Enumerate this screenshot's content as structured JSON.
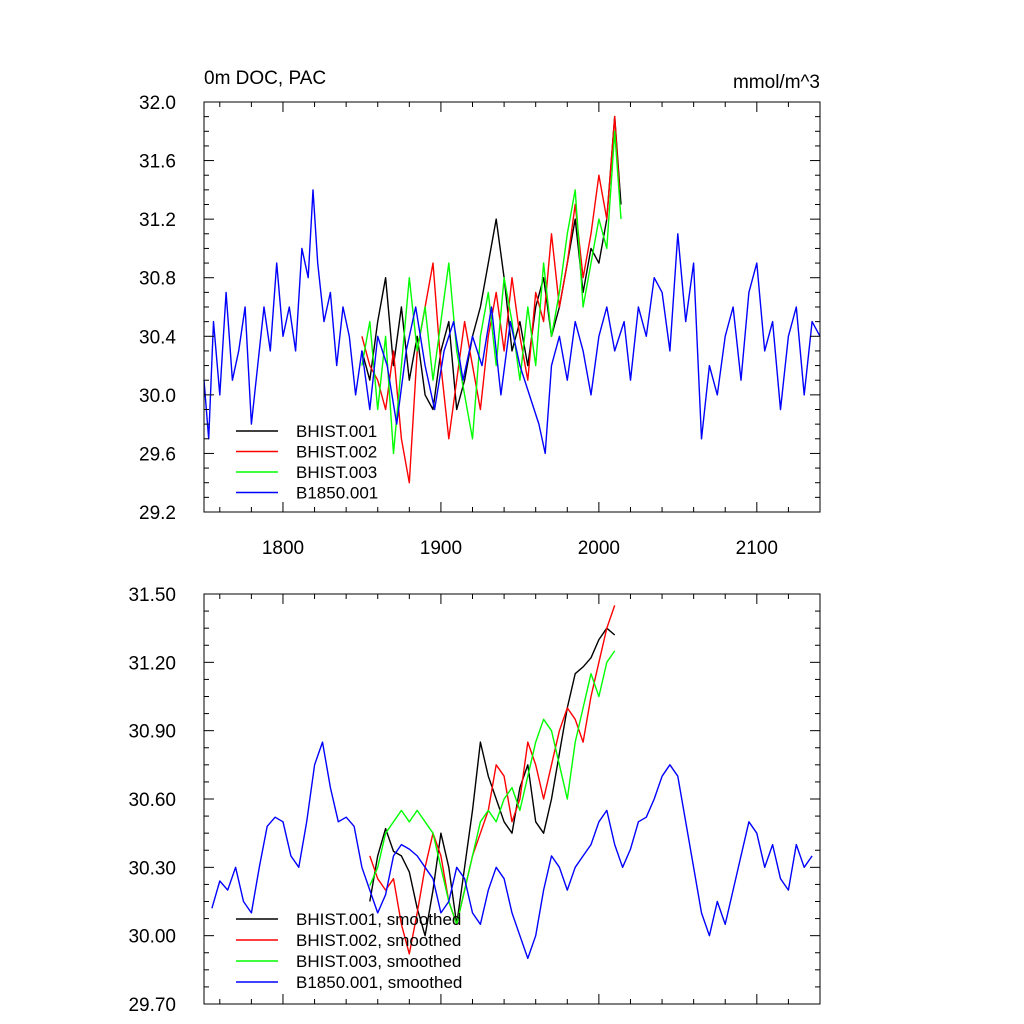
{
  "chart_data": [
    {
      "type": "line",
      "title": "0m DOC, PAC",
      "units": "mmol/m^3",
      "xlim": [
        1750,
        2140
      ],
      "ylim": [
        29.2,
        32.0
      ],
      "x_ticks": [
        1800,
        1900,
        2000,
        2100
      ],
      "x_tick_labels": [
        "1800",
        "1900",
        "2000",
        "2100"
      ],
      "y_ticks": [
        29.2,
        29.6,
        30.0,
        30.4,
        30.8,
        31.2,
        31.6,
        32.0
      ],
      "y_tick_labels": [
        "29.2",
        "29.6",
        "30.0",
        "30.4",
        "30.8",
        "31.2",
        "31.6",
        "32.0"
      ],
      "legend_position": "bottom-left",
      "series": [
        {
          "name": "BHIST.001",
          "color": "#000000",
          "x": [
            1850,
            1855,
            1860,
            1865,
            1870,
            1875,
            1880,
            1885,
            1890,
            1895,
            1900,
            1905,
            1910,
            1915,
            1920,
            1925,
            1930,
            1935,
            1940,
            1945,
            1950,
            1955,
            1960,
            1965,
            1970,
            1975,
            1980,
            1985,
            1990,
            1995,
            2000,
            2005,
            2010,
            2014
          ],
          "y": [
            30.3,
            30.1,
            30.5,
            30.8,
            30.2,
            30.6,
            30.1,
            30.4,
            30.0,
            29.9,
            30.3,
            30.5,
            29.9,
            30.1,
            30.4,
            30.6,
            30.9,
            31.2,
            30.8,
            30.3,
            30.5,
            30.2,
            30.6,
            30.8,
            30.4,
            30.6,
            30.9,
            31.2,
            30.7,
            31.0,
            30.9,
            31.2,
            31.9,
            31.3
          ]
        },
        {
          "name": "BHIST.002",
          "color": "#ff0000",
          "x": [
            1850,
            1855,
            1860,
            1865,
            1870,
            1875,
            1880,
            1885,
            1890,
            1895,
            1900,
            1905,
            1910,
            1915,
            1920,
            1925,
            1930,
            1935,
            1940,
            1945,
            1950,
            1955,
            1960,
            1965,
            1970,
            1975,
            1980,
            1985,
            1990,
            1995,
            2000,
            2005,
            2010,
            2013
          ],
          "y": [
            30.4,
            30.2,
            30.1,
            29.9,
            30.3,
            29.7,
            29.4,
            30.3,
            30.6,
            30.9,
            30.2,
            29.7,
            30.1,
            30.5,
            30.2,
            29.9,
            30.4,
            30.7,
            30.3,
            30.8,
            30.4,
            30.1,
            30.7,
            30.5,
            31.1,
            30.6,
            30.9,
            31.3,
            30.8,
            31.1,
            31.5,
            31.2,
            31.9,
            31.4
          ]
        },
        {
          "name": "BHIST.003",
          "color": "#00ff00",
          "x": [
            1850,
            1855,
            1860,
            1865,
            1870,
            1875,
            1880,
            1885,
            1890,
            1895,
            1900,
            1905,
            1910,
            1915,
            1920,
            1925,
            1930,
            1935,
            1940,
            1945,
            1950,
            1955,
            1960,
            1965,
            1970,
            1975,
            1980,
            1985,
            1990,
            1995,
            2000,
            2005,
            2010,
            2014
          ],
          "y": [
            30.2,
            30.5,
            29.9,
            30.4,
            29.6,
            30.2,
            30.8,
            30.3,
            30.6,
            30.1,
            30.5,
            30.9,
            30.3,
            30.0,
            29.7,
            30.4,
            30.7,
            30.2,
            30.8,
            30.5,
            30.1,
            30.6,
            30.2,
            30.9,
            30.4,
            30.7,
            31.1,
            31.4,
            30.6,
            30.9,
            31.2,
            31.0,
            31.8,
            31.2
          ]
        },
        {
          "name": "B1850.001",
          "color": "#0000ff",
          "x": [
            1750,
            1753,
            1756,
            1760,
            1764,
            1768,
            1772,
            1776,
            1780,
            1784,
            1788,
            1792,
            1796,
            1800,
            1804,
            1808,
            1812,
            1816,
            1819,
            1822,
            1826,
            1830,
            1834,
            1838,
            1842,
            1846,
            1850,
            1855,
            1860,
            1866,
            1872,
            1878,
            1884,
            1890,
            1896,
            1902,
            1908,
            1914,
            1920,
            1926,
            1932,
            1938,
            1944,
            1950,
            1956,
            1962,
            1966,
            1970,
            1975,
            1980,
            1985,
            1990,
            1995,
            2000,
            2005,
            2010,
            2016,
            2020,
            2025,
            2030,
            2035,
            2040,
            2045,
            2050,
            2055,
            2060,
            2065,
            2070,
            2075,
            2080,
            2085,
            2090,
            2095,
            2100,
            2105,
            2110,
            2115,
            2120,
            2125,
            2130,
            2135,
            2140
          ],
          "y": [
            30.1,
            29.7,
            30.5,
            30.0,
            30.7,
            30.1,
            30.3,
            30.6,
            29.8,
            30.2,
            30.6,
            30.3,
            30.9,
            30.4,
            30.6,
            30.3,
            31.0,
            30.8,
            31.4,
            30.9,
            30.5,
            30.7,
            30.2,
            30.6,
            30.4,
            30.0,
            30.3,
            29.9,
            30.4,
            30.2,
            29.8,
            30.3,
            30.6,
            30.2,
            29.9,
            30.3,
            30.5,
            30.1,
            30.4,
            30.2,
            30.6,
            30.0,
            30.5,
            30.2,
            30.0,
            29.8,
            29.6,
            30.2,
            30.4,
            30.1,
            30.5,
            30.3,
            30.0,
            30.4,
            30.6,
            30.3,
            30.5,
            30.1,
            30.6,
            30.4,
            30.8,
            30.7,
            30.3,
            31.1,
            30.5,
            30.9,
            29.7,
            30.2,
            30.0,
            30.4,
            30.6,
            30.1,
            30.7,
            30.9,
            30.3,
            30.5,
            29.9,
            30.4,
            30.6,
            30.0,
            30.5,
            30.4
          ]
        }
      ]
    },
    {
      "type": "line",
      "xlim": [
        1750,
        2140
      ],
      "ylim": [
        29.7,
        31.5
      ],
      "x_ticks": [
        1800,
        1900,
        2000,
        2100
      ],
      "y_ticks": [
        29.7,
        30.0,
        30.3,
        30.6,
        30.9,
        31.2,
        31.5
      ],
      "y_tick_labels": [
        "29.70",
        "30.00",
        "30.30",
        "30.60",
        "30.90",
        "31.20",
        "31.50"
      ],
      "legend_position": "bottom-left",
      "series": [
        {
          "name": "BHIST.001, smoothed",
          "color": "#000000",
          "x": [
            1855,
            1860,
            1865,
            1870,
            1875,
            1880,
            1885,
            1890,
            1895,
            1900,
            1905,
            1910,
            1915,
            1920,
            1925,
            1930,
            1935,
            1940,
            1945,
            1950,
            1955,
            1960,
            1965,
            1970,
            1975,
            1980,
            1985,
            1990,
            1995,
            2000,
            2005,
            2010
          ],
          "y": [
            30.15,
            30.35,
            30.47,
            30.37,
            30.35,
            30.28,
            30.12,
            30.0,
            30.2,
            30.45,
            30.3,
            30.05,
            30.3,
            30.55,
            30.85,
            30.7,
            30.6,
            30.5,
            30.45,
            30.65,
            30.75,
            30.5,
            30.45,
            30.6,
            30.8,
            31.0,
            31.15,
            31.18,
            31.22,
            31.3,
            31.35,
            31.32
          ]
        },
        {
          "name": "BHIST.002, smoothed",
          "color": "#ff0000",
          "x": [
            1855,
            1860,
            1865,
            1870,
            1875,
            1880,
            1885,
            1890,
            1895,
            1900,
            1905,
            1910,
            1915,
            1920,
            1925,
            1930,
            1935,
            1940,
            1945,
            1950,
            1955,
            1960,
            1965,
            1970,
            1975,
            1980,
            1985,
            1990,
            1995,
            2000,
            2005,
            2010
          ],
          "y": [
            30.35,
            30.25,
            30.2,
            30.25,
            30.05,
            29.92,
            30.1,
            30.3,
            30.45,
            30.35,
            30.15,
            30.05,
            30.2,
            30.35,
            30.45,
            30.55,
            30.75,
            30.7,
            30.5,
            30.6,
            30.85,
            30.75,
            30.6,
            30.75,
            30.9,
            31.0,
            30.95,
            30.85,
            31.05,
            31.2,
            31.35,
            31.45
          ]
        },
        {
          "name": "BHIST.003, smoothed",
          "color": "#00ff00",
          "x": [
            1855,
            1860,
            1865,
            1870,
            1875,
            1880,
            1885,
            1890,
            1895,
            1900,
            1905,
            1910,
            1915,
            1920,
            1925,
            1930,
            1935,
            1940,
            1945,
            1950,
            1955,
            1960,
            1965,
            1970,
            1975,
            1980,
            1985,
            1990,
            1995,
            2000,
            2005,
            2010
          ],
          "y": [
            30.22,
            30.3,
            30.45,
            30.5,
            30.55,
            30.5,
            30.55,
            30.5,
            30.45,
            30.3,
            30.15,
            30.05,
            30.2,
            30.35,
            30.5,
            30.55,
            30.5,
            30.6,
            30.65,
            30.55,
            30.7,
            30.85,
            30.95,
            30.9,
            30.75,
            30.6,
            30.85,
            31.0,
            31.15,
            31.05,
            31.2,
            31.25
          ]
        },
        {
          "name": "B1850.001, smoothed",
          "color": "#0000ff",
          "x": [
            1755,
            1760,
            1765,
            1770,
            1775,
            1780,
            1785,
            1790,
            1795,
            1800,
            1805,
            1810,
            1815,
            1820,
            1825,
            1830,
            1835,
            1840,
            1845,
            1850,
            1855,
            1860,
            1865,
            1870,
            1875,
            1880,
            1885,
            1890,
            1895,
            1900,
            1905,
            1910,
            1915,
            1920,
            1925,
            1930,
            1935,
            1940,
            1945,
            1950,
            1955,
            1960,
            1965,
            1970,
            1975,
            1980,
            1985,
            1990,
            1995,
            2000,
            2005,
            2010,
            2015,
            2020,
            2025,
            2030,
            2035,
            2040,
            2045,
            2050,
            2055,
            2060,
            2065,
            2070,
            2075,
            2080,
            2085,
            2090,
            2095,
            2100,
            2105,
            2110,
            2115,
            2120,
            2125,
            2130,
            2135
          ],
          "y": [
            30.12,
            30.24,
            30.2,
            30.3,
            30.15,
            30.1,
            30.3,
            30.48,
            30.52,
            30.5,
            30.35,
            30.3,
            30.5,
            30.75,
            30.85,
            30.65,
            30.5,
            30.52,
            30.48,
            30.3,
            30.2,
            30.1,
            30.18,
            30.35,
            30.4,
            30.38,
            30.35,
            30.3,
            30.25,
            30.1,
            30.15,
            30.3,
            30.25,
            30.1,
            30.05,
            30.2,
            30.3,
            30.25,
            30.1,
            30.0,
            29.9,
            30.0,
            30.2,
            30.35,
            30.3,
            30.2,
            30.3,
            30.35,
            30.4,
            30.5,
            30.55,
            30.4,
            30.3,
            30.38,
            30.5,
            30.52,
            30.6,
            30.7,
            30.75,
            30.7,
            30.5,
            30.3,
            30.1,
            30.0,
            30.15,
            30.05,
            30.2,
            30.35,
            30.5,
            30.45,
            30.3,
            30.4,
            30.25,
            30.2,
            30.4,
            30.3,
            30.35
          ]
        }
      ]
    }
  ]
}
